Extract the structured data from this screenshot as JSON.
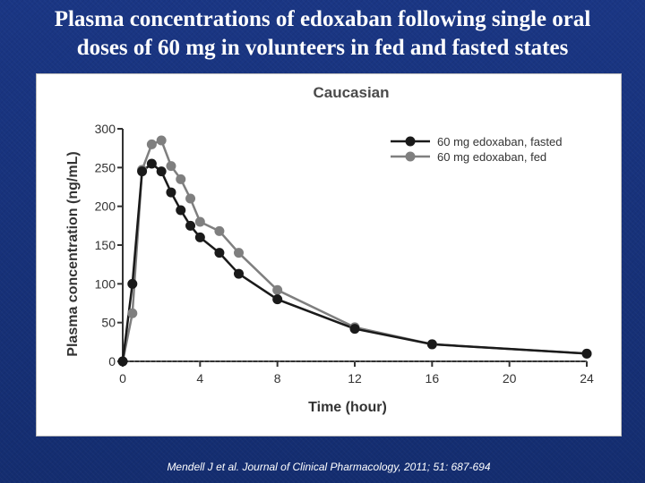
{
  "slide": {
    "title_line1": "Plasma concentrations of edoxaban following single oral",
    "title_line2": "doses of 60 mg in volunteers in fed and fasted states",
    "citation": "Mendell J et al. Journal of Clinical Pharmacology, 2011; 51: 687-694"
  },
  "chart_data": {
    "type": "line",
    "title": "Caucasian",
    "xlabel": "Time (hour)",
    "ylabel": "Plasma concentration (ng/mL)",
    "xlim": [
      0,
      24
    ],
    "ylim": [
      0,
      300
    ],
    "xticks": [
      0,
      4,
      8,
      12,
      16,
      20,
      24
    ],
    "yticks": [
      0,
      50,
      100,
      150,
      200,
      250,
      300
    ],
    "grid": false,
    "legend_position": "top-right",
    "reference_line": {
      "y": 0,
      "style": "dotted"
    },
    "series": [
      {
        "name": "60 mg edoxaban, fasted",
        "color": "#1a1a1a",
        "x": [
          0,
          0.5,
          1,
          1.5,
          2,
          2.5,
          3,
          3.5,
          4,
          5,
          6,
          8,
          12,
          16,
          24
        ],
        "y": [
          0,
          100,
          245,
          255,
          245,
          218,
          195,
          175,
          160,
          140,
          113,
          80,
          42,
          22,
          10
        ]
      },
      {
        "name": "60 mg edoxaban, fed",
        "color": "#7f7f7f",
        "x": [
          0,
          0.5,
          1,
          1.5,
          2,
          2.5,
          3,
          3.5,
          4,
          5,
          6,
          8,
          12,
          16,
          24
        ],
        "y": [
          0,
          62,
          247,
          280,
          285,
          252,
          235,
          210,
          180,
          168,
          140,
          92,
          44,
          22,
          10
        ]
      }
    ]
  }
}
